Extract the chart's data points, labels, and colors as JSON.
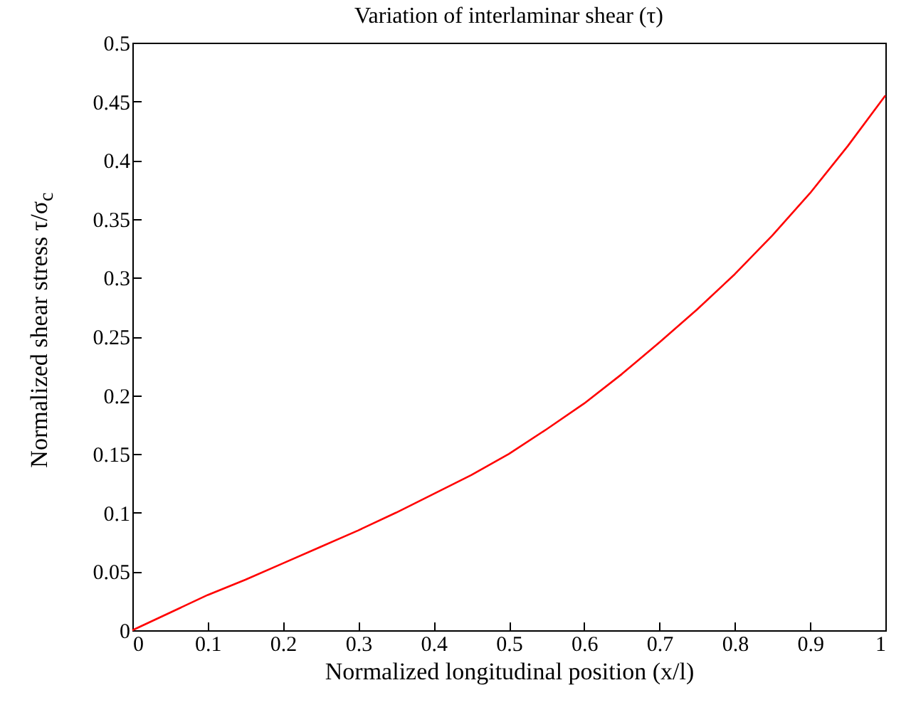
{
  "chart_data": {
    "type": "line",
    "title": "Variation of interlaminar shear (τ)",
    "xlabel": "Normalized longitudinal position (x/l)",
    "ylabel": "Normalized shear stress τ/σ$_{c}$",
    "x": [
      0,
      0.05,
      0.1,
      0.15,
      0.2,
      0.25,
      0.3,
      0.35,
      0.4,
      0.45,
      0.5,
      0.55,
      0.6,
      0.65,
      0.7,
      0.75,
      0.8,
      0.85,
      0.9,
      0.95,
      1
    ],
    "series": [
      {
        "color": "#ff0000",
        "values": [
          0,
          0.015,
          0.03,
          0.043,
          0.057,
          0.071,
          0.085,
          0.1,
          0.116,
          0.132,
          0.15,
          0.171,
          0.193,
          0.218,
          0.245,
          0.273,
          0.303,
          0.336,
          0.372,
          0.412,
          0.455
        ]
      }
    ],
    "xlim": [
      0,
      1
    ],
    "xticks": [
      0,
      0.1,
      0.2,
      0.3,
      0.4,
      0.5,
      0.6,
      0.7,
      0.8,
      0.9,
      1
    ],
    "ylim": [
      0,
      0.5
    ],
    "yticks": [
      0,
      0.05,
      0.1,
      0.15,
      0.2,
      0.25,
      0.3,
      0.35,
      0.4,
      0.45,
      0.5
    ],
    "grid": false,
    "marker": "none",
    "line_style": "solid"
  }
}
